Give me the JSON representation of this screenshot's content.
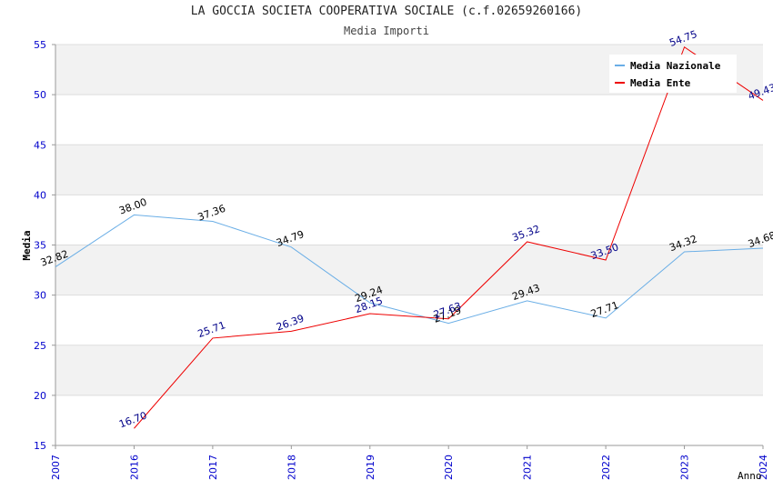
{
  "chart_data": {
    "type": "line",
    "title": "LA GOCCIA SOCIETA COOPERATIVA SOCIALE (c.f.02659260166)",
    "subtitle": "Media Importi",
    "xlabel": "Anno",
    "ylabel": "Media",
    "categories": [
      "2007",
      "2016",
      "2017",
      "2018",
      "2019",
      "2020",
      "2021",
      "2022",
      "2023",
      "2024"
    ],
    "ylim": [
      15,
      55
    ],
    "yticks": [
      15,
      20,
      25,
      30,
      35,
      40,
      45,
      50,
      55
    ],
    "grid": true,
    "legend_position": "top-right",
    "series": [
      {
        "name": "Media Nazionale",
        "color": "#6aaee6",
        "label_color": "#000000",
        "values": [
          32.82,
          38.0,
          37.36,
          34.79,
          29.24,
          27.19,
          29.43,
          27.71,
          34.32,
          34.68
        ],
        "labels": [
          "32.82",
          "38.00",
          "37.36",
          "34.79",
          "29.24",
          "27.19",
          "29.43",
          "27.71",
          "34.32",
          "34.68"
        ]
      },
      {
        "name": "Media Ente",
        "color": "#ee0000",
        "label_color": "#000088",
        "values": [
          null,
          16.7,
          25.71,
          26.39,
          28.15,
          27.63,
          35.32,
          33.5,
          54.75,
          49.43
        ],
        "labels": [
          null,
          "16.70",
          "25.71",
          "26.39",
          "28.15",
          "27.63",
          "35.32",
          "33.50",
          "54.75",
          "49.43"
        ]
      }
    ]
  }
}
